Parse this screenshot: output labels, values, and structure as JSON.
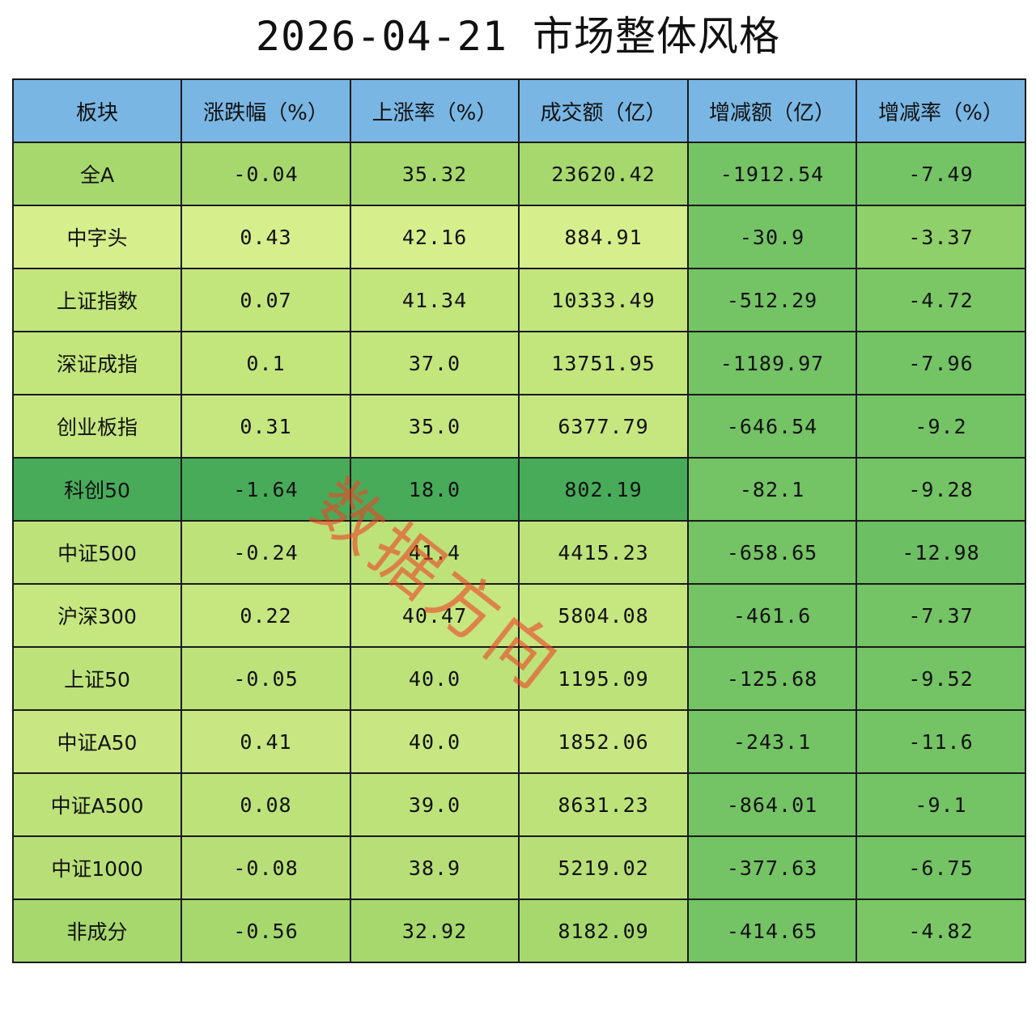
{
  "title": "2026-04-21  市场整体风格",
  "watermark": "数据方向",
  "table": {
    "headers": [
      "板块",
      "涨跌幅（%）",
      "上涨率（%）",
      "成交额（亿）",
      "增减额（亿）",
      "增减率（%）"
    ],
    "rows": [
      {
        "cells": [
          "全A",
          "-0.04",
          "35.32",
          "23620.42",
          "-1912.54",
          "-7.49"
        ],
        "colors": [
          "#a6d86e",
          "#a6d86e",
          "#a6d86e",
          "#a6d86e",
          "#74c365",
          "#74c365"
        ]
      },
      {
        "cells": [
          "中字头",
          "0.43",
          "42.16",
          "884.91",
          "-30.9",
          "-3.37"
        ],
        "colors": [
          "#d6ee8c",
          "#d6ee8c",
          "#d6ee8c",
          "#d6ee8c",
          "#74c365",
          "#8fd06a"
        ]
      },
      {
        "cells": [
          "上证指数",
          "0.07",
          "41.34",
          "10333.49",
          "-512.29",
          "-4.72"
        ],
        "colors": [
          "#c2e57c",
          "#c2e57c",
          "#c2e57c",
          "#c2e57c",
          "#74c365",
          "#7bc766"
        ]
      },
      {
        "cells": [
          "深证成指",
          "0.1",
          "37.0",
          "13751.95",
          "-1189.97",
          "-7.96"
        ],
        "colors": [
          "#c2e57c",
          "#c2e57c",
          "#c2e57c",
          "#c2e57c",
          "#74c365",
          "#74c365"
        ]
      },
      {
        "cells": [
          "创业板指",
          "0.31",
          "35.0",
          "6377.79",
          "-646.54",
          "-9.2"
        ],
        "colors": [
          "#c6e680",
          "#c6e680",
          "#c6e680",
          "#c6e680",
          "#74c365",
          "#74c365"
        ]
      },
      {
        "cells": [
          "科创50",
          "-1.64",
          "18.0",
          "802.19",
          "-82.1",
          "-9.28"
        ],
        "colors": [
          "#48ab5a",
          "#48ab5a",
          "#48ab5a",
          "#48ab5a",
          "#74c365",
          "#74c365"
        ]
      },
      {
        "cells": [
          "中证500",
          "-0.24",
          "41.4",
          "4415.23",
          "-658.65",
          "-12.98"
        ],
        "colors": [
          "#bde27a",
          "#bde27a",
          "#bde27a",
          "#bde27a",
          "#74c365",
          "#6cbf62"
        ]
      },
      {
        "cells": [
          "沪深300",
          "0.22",
          "40.47",
          "5804.08",
          "-461.6",
          "-7.37"
        ],
        "colors": [
          "#c6e680",
          "#c6e680",
          "#c6e680",
          "#c6e680",
          "#74c365",
          "#74c365"
        ]
      },
      {
        "cells": [
          "上证50",
          "-0.05",
          "40.0",
          "1195.09",
          "-125.68",
          "-9.52"
        ],
        "colors": [
          "#bde27a",
          "#bde27a",
          "#bde27a",
          "#bde27a",
          "#74c365",
          "#74c365"
        ]
      },
      {
        "cells": [
          "中证A50",
          "0.41",
          "40.0",
          "1852.06",
          "-243.1",
          "-11.6"
        ],
        "colors": [
          "#c8e782",
          "#c8e782",
          "#c8e782",
          "#c8e782",
          "#74c365",
          "#74c365"
        ]
      },
      {
        "cells": [
          "中证A500",
          "0.08",
          "39.0",
          "8631.23",
          "-864.01",
          "-9.1"
        ],
        "colors": [
          "#bde27a",
          "#bde27a",
          "#bde27a",
          "#bde27a",
          "#74c365",
          "#74c365"
        ]
      },
      {
        "cells": [
          "中证1000",
          "-0.08",
          "38.9",
          "5219.02",
          "-377.63",
          "-6.75"
        ],
        "colors": [
          "#b8df77",
          "#b8df77",
          "#b8df77",
          "#b8df77",
          "#74c365",
          "#74c365"
        ]
      },
      {
        "cells": [
          "非成分",
          "-0.56",
          "32.92",
          "8182.09",
          "-414.65",
          "-4.82"
        ],
        "colors": [
          "#a6d86e",
          "#a6d86e",
          "#a6d86e",
          "#a6d86e",
          "#74c365",
          "#7bc766"
        ]
      }
    ]
  }
}
